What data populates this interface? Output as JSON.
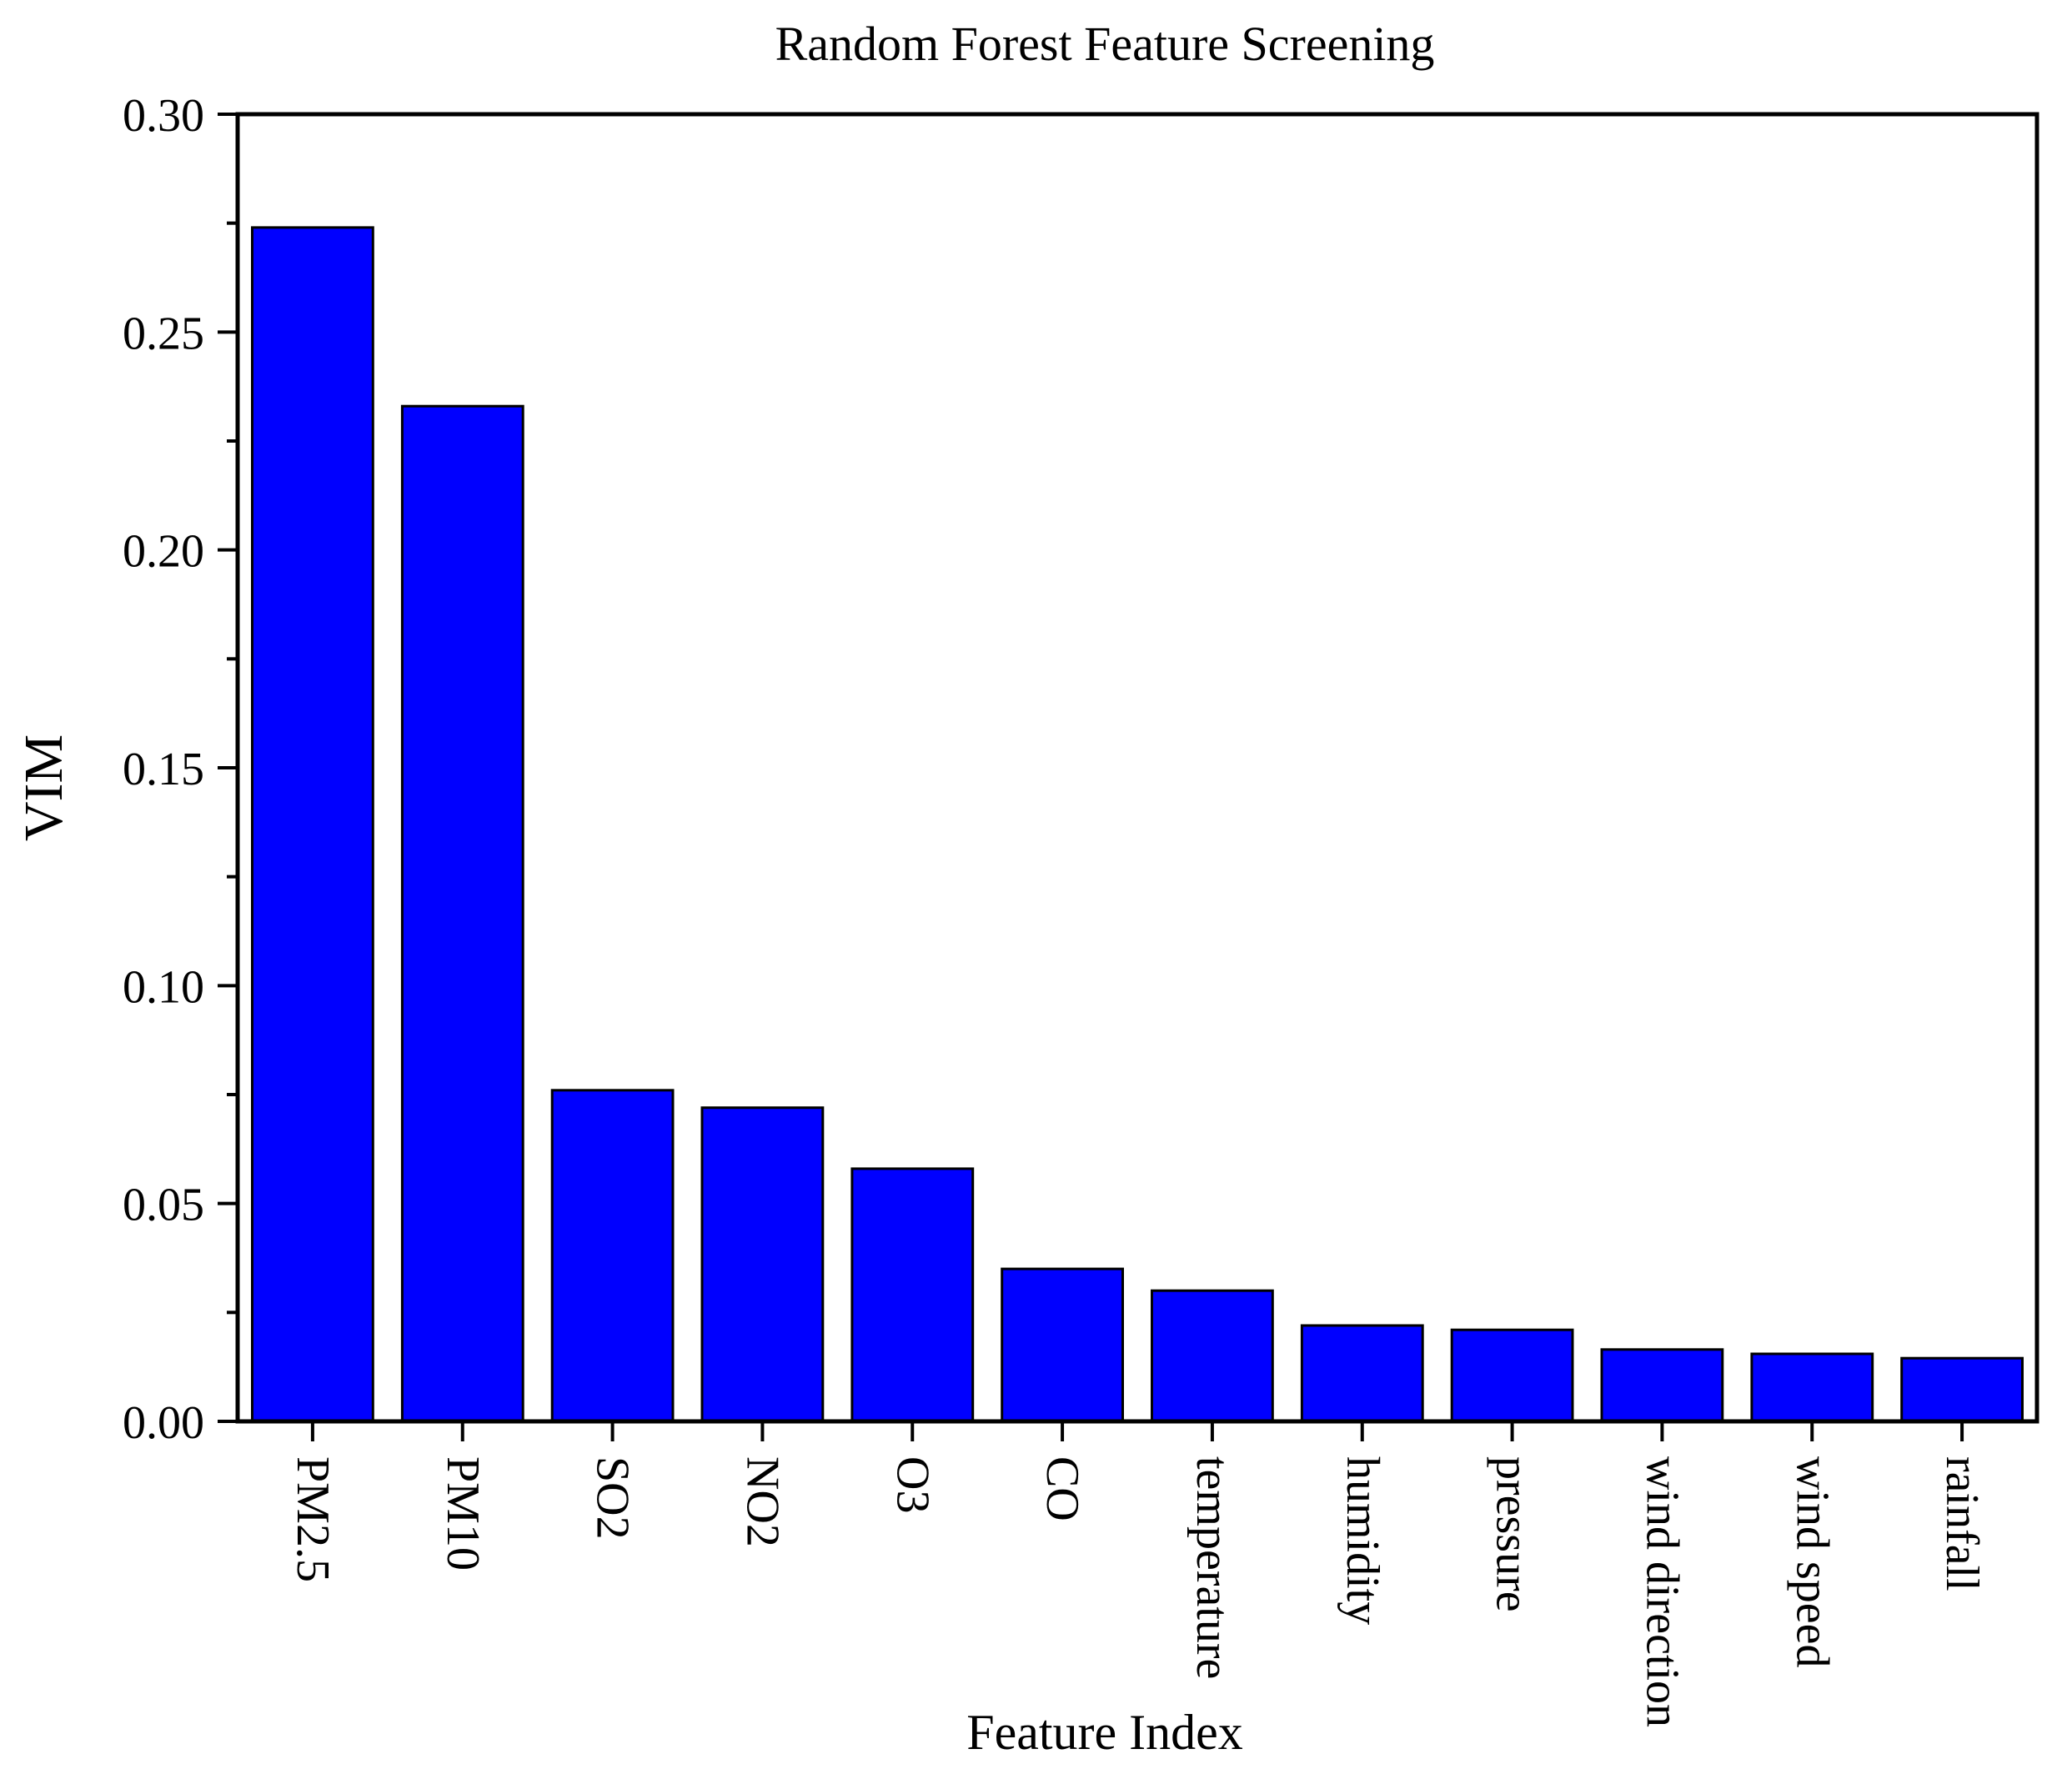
{
  "chart_data": {
    "type": "bar",
    "title": "Random Forest Feature Screening",
    "xlabel": "Feature Index",
    "ylabel": "VIM",
    "categories": [
      "PM2.5",
      "PM10",
      "SO2",
      "NO2",
      "O3",
      "CO",
      "temperature",
      "humidity",
      "pressure",
      "wind direction",
      "wind speed",
      "rainfall"
    ],
    "values": [
      0.274,
      0.233,
      0.076,
      0.072,
      0.058,
      0.035,
      0.03,
      0.022,
      0.021,
      0.0165,
      0.0155,
      0.0145
    ],
    "ylim": [
      0,
      0.3
    ],
    "yticks": [
      "0.00",
      "0.05",
      "0.10",
      "0.15",
      "0.20",
      "0.25",
      "0.30"
    ],
    "grid": false,
    "legend": "none",
    "bar_color": "#0000FF",
    "edge_color": "#000000"
  }
}
